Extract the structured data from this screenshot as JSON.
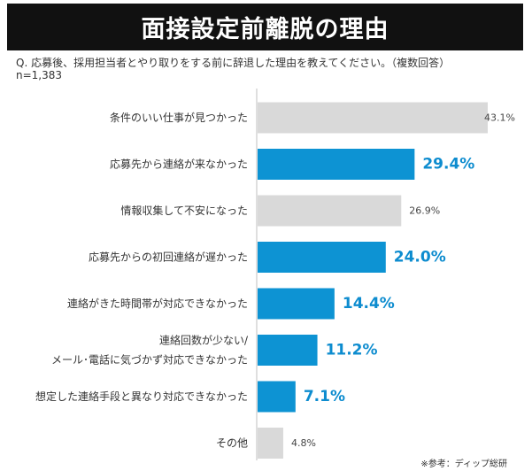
{
  "header": {
    "title": "面接設定前離脱の理由",
    "question": "Q. 応募後、採用担当者とやり取りをする前に辞退した理由を教えてください。（複数回答）",
    "sample": "n=1,383"
  },
  "footer": {
    "credit": "※参考：ディップ総研"
  },
  "colors": {
    "highlight": "#0d93d3",
    "gray": "#d9d9d9",
    "highlight_text": "#0d8ccf",
    "gray_text": "#444444"
  },
  "chart_data": {
    "type": "bar",
    "orientation": "horizontal",
    "categories": [
      [
        "条件のいい仕事が見つかった"
      ],
      [
        "応募先から連絡が来なかった"
      ],
      [
        "情報収集して不安になった"
      ],
      [
        "応募先からの初回連絡が遅かった"
      ],
      [
        "連絡がきた時間帯が対応できなかった"
      ],
      [
        "連絡回数が少ない/",
        "メール･電話に気づかず対応できなかった"
      ],
      [
        "想定した連絡手段と異なり対応できなかった"
      ],
      [
        "その他"
      ]
    ],
    "values": [
      43.1,
      29.4,
      26.9,
      24.0,
      14.4,
      11.2,
      7.1,
      4.8
    ],
    "labels": [
      "43.1%",
      "29.4%",
      "26.9%",
      "24.0%",
      "14.4%",
      "11.2%",
      "7.1%",
      "4.8%"
    ],
    "highlighted": [
      false,
      true,
      false,
      true,
      true,
      true,
      true,
      false
    ],
    "xlim": [
      0,
      43.1
    ],
    "unit": "%"
  }
}
